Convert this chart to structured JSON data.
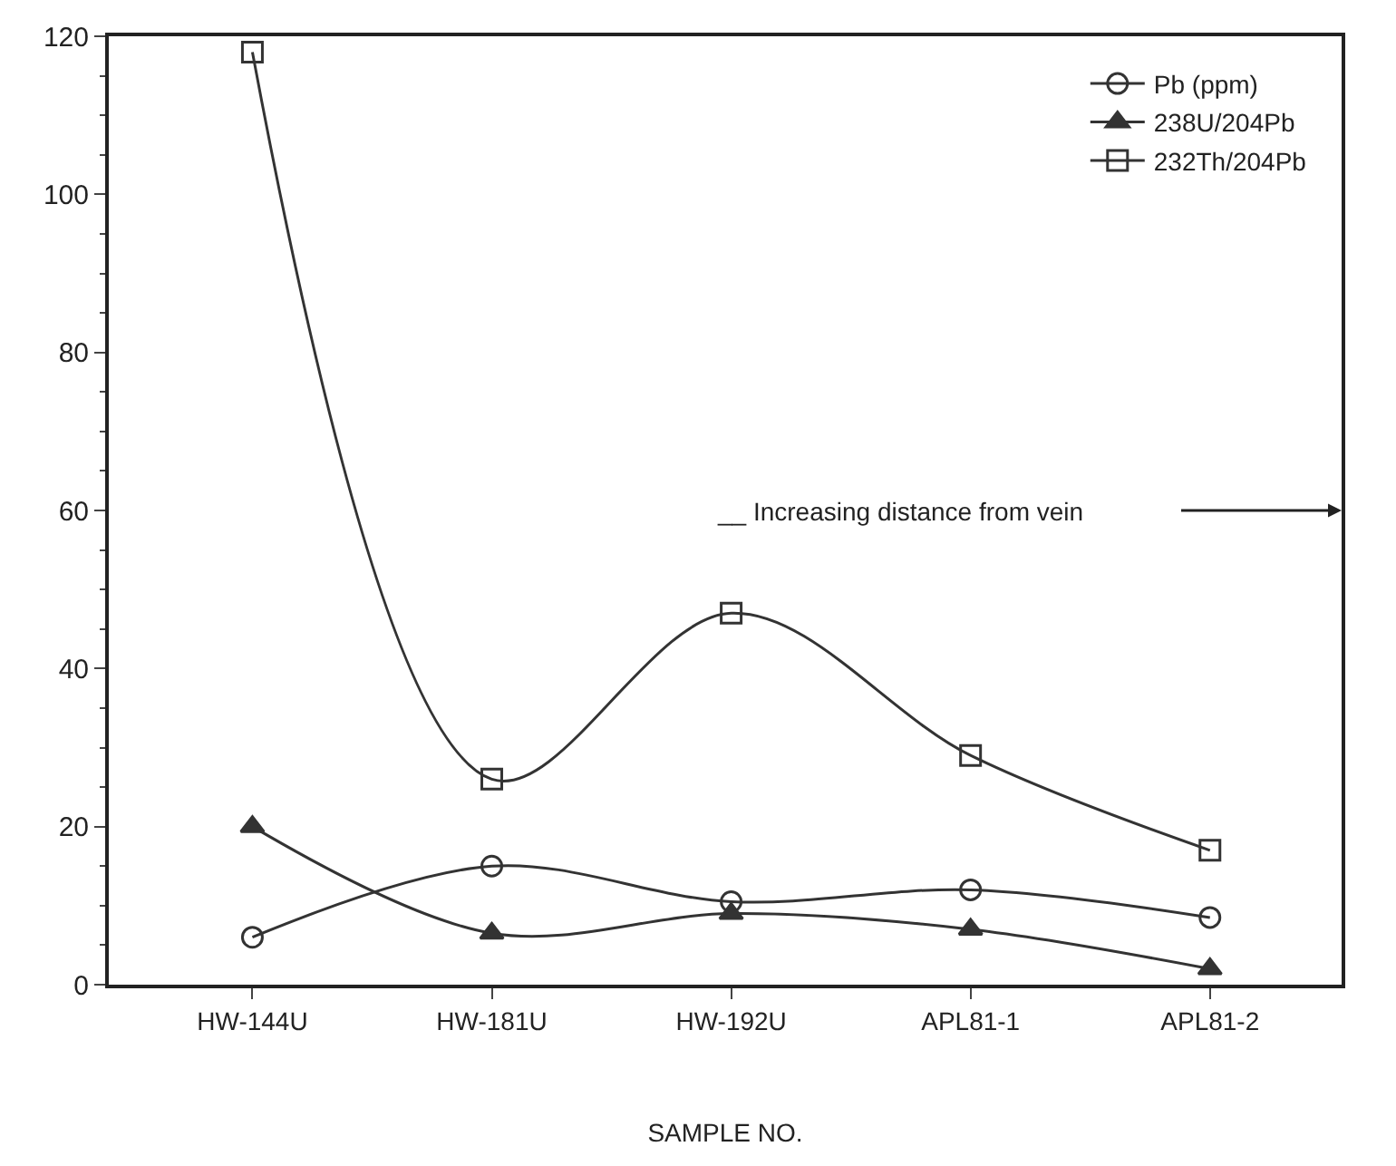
{
  "chart_data": {
    "type": "line",
    "xlabel": "SAMPLE NO.",
    "categories": [
      "HW-144U",
      "HW-181U",
      "HW-192U",
      "APL81-1",
      "APL81-2"
    ],
    "series": [
      {
        "name": "Pb (ppm)",
        "color": "#333333",
        "marker": "circle",
        "values": [
          6,
          15,
          10.5,
          12,
          8.5
        ]
      },
      {
        "name": "238U/204Pb",
        "color": "#333333",
        "marker": "triangle",
        "values": [
          20,
          6.5,
          9,
          7,
          2
        ]
      },
      {
        "name": "232Th/204Pb",
        "color": "#333333",
        "marker": "square",
        "values": [
          118,
          26,
          47,
          29,
          17
        ]
      }
    ],
    "ylim": [
      0,
      120
    ],
    "yticks": [
      0,
      20,
      40,
      60,
      80,
      100,
      120
    ],
    "grid": false,
    "legend": "top right",
    "annotations": [
      "__ Increasing distance from vein"
    ]
  }
}
